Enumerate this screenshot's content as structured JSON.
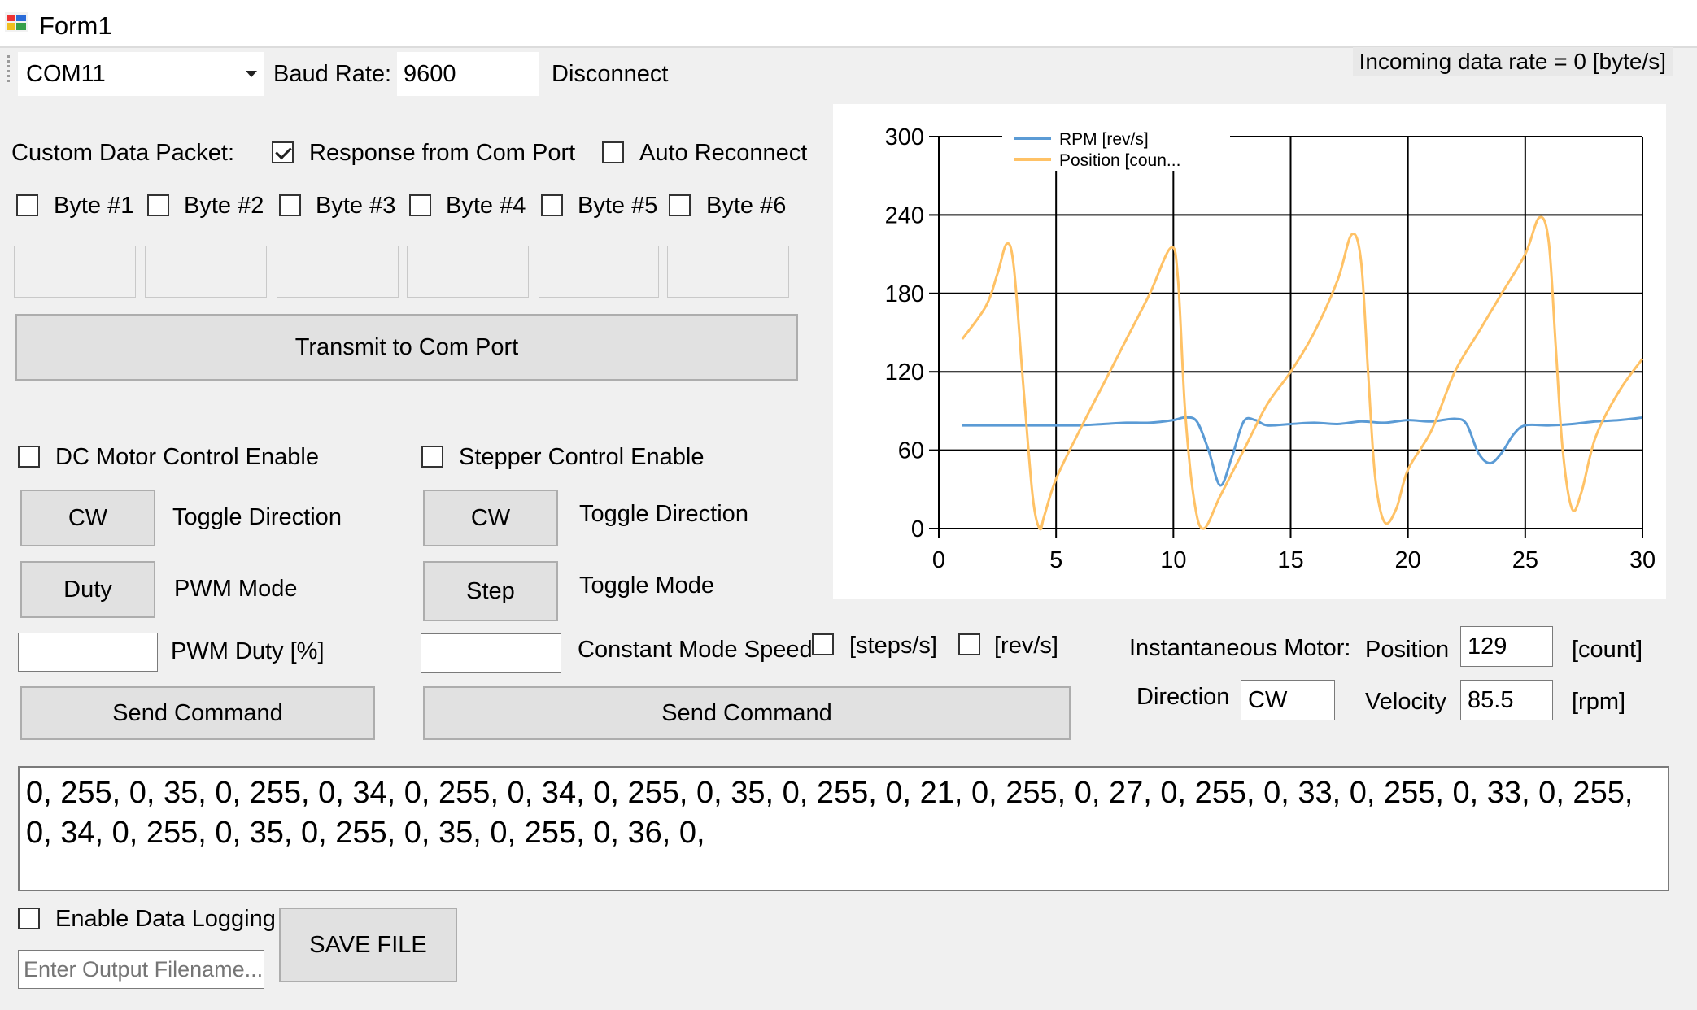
{
  "window": {
    "title": "Form1"
  },
  "toolbar": {
    "port_value": "COM11",
    "baud_label": "Baud Rate:",
    "baud_value": "9600",
    "disconnect_label": "Disconnect",
    "incoming_rate_label": "Incoming data rate = 0 [byte/s]"
  },
  "packet": {
    "custom_label": "Custom Data Packet:",
    "response_label": "Response from Com Port",
    "response_checked": true,
    "auto_reconnect_label": "Auto Reconnect",
    "bytes": [
      "Byte #1",
      "Byte #2",
      "Byte #3",
      "Byte #4",
      "Byte #5",
      "Byte #6"
    ],
    "transmit_label": "Transmit to Com Port"
  },
  "dc": {
    "enable_label": "DC Motor Control Enable",
    "cw_label": "CW",
    "toggle_dir_label": "Toggle Direction",
    "duty_label": "Duty",
    "pwm_mode_label": "PWM Mode",
    "pwm_duty_label": "PWM Duty [%]",
    "send_label": "Send Command"
  },
  "stepper": {
    "enable_label": "Stepper Control Enable",
    "cw_label": "CW",
    "toggle_dir_label": "Toggle Direction",
    "step_label": "Step",
    "toggle_mode_label": "Toggle Mode",
    "const_speed_label": "Constant Mode Speed",
    "steps_label": "[steps/s]",
    "revs_label": "[rev/s]",
    "send_label": "Send Command"
  },
  "motor": {
    "instant_label": "Instantaneous Motor:",
    "position_label": "Position",
    "position_value": "129",
    "count_unit": "[count]",
    "direction_label": "Direction",
    "direction_value": "CW",
    "velocity_label": "Velocity",
    "velocity_value": "85.5",
    "rpm_unit": "[rpm]"
  },
  "output": {
    "text": "0, 255, 0, 35, 0, 255, 0, 34, 0, 255, 0, 34, 0, 255, 0, 35, 0, 255, 0, 21, 0, 255, 0, 27, 0, 255, 0, 33, 0, 255, 0, 33, 0, 255, 0, 34, 0, 255, 0, 35, 0, 255, 0, 35, 0, 255, 0, 36, 0,"
  },
  "logging": {
    "enable_label": "Enable Data Logging",
    "filename_placeholder": "Enter Output Filename...",
    "save_label": "SAVE FILE"
  },
  "colors": {
    "rpm": "#5b9bd5",
    "position": "#ffc266",
    "window_bg": "#f0f0f0"
  },
  "chart_data": {
    "type": "line",
    "xlim": [
      0,
      30
    ],
    "ylim": [
      0,
      300
    ],
    "x_ticks": [
      0,
      5,
      10,
      15,
      20,
      25,
      30
    ],
    "y_ticks": [
      0,
      60,
      120,
      180,
      240,
      300
    ],
    "grid": true,
    "legend_position": "top",
    "series": [
      {
        "name": "RPM [rev/s]",
        "color": "#5b9bd5",
        "x": [
          1,
          2,
          3,
          4,
          5,
          6,
          7,
          8,
          9,
          10,
          10.5,
          11,
          11.5,
          12,
          12.5,
          13,
          13.5,
          14,
          15,
          16,
          17,
          18,
          19,
          20,
          21,
          22,
          22.5,
          23,
          23.5,
          24,
          24.5,
          25,
          26,
          27,
          28,
          29,
          30
        ],
        "values": [
          79,
          79,
          79,
          79,
          79,
          79,
          80,
          81,
          81,
          83,
          85,
          82,
          60,
          33,
          55,
          82,
          83,
          79,
          80,
          81,
          80,
          82,
          81,
          83,
          82,
          84,
          80,
          58,
          50,
          58,
          72,
          79,
          79,
          80,
          82,
          83,
          85
        ]
      },
      {
        "name": "Position [coun...",
        "color": "#ffc266",
        "x": [
          1,
          2,
          2.5,
          2.9,
          3.2,
          3.6,
          4,
          4.3,
          4.5,
          5,
          6,
          7,
          8,
          9,
          9.9,
          10.2,
          10.5,
          10.9,
          11.3,
          12,
          13,
          14,
          15,
          16,
          17,
          17.6,
          18,
          18.3,
          18.6,
          19,
          19.5,
          20,
          21,
          22,
          23,
          24,
          25,
          25.6,
          26,
          26.3,
          26.6,
          27,
          27.4,
          28,
          29,
          30
        ],
        "values": [
          145,
          170,
          195,
          218,
          200,
          110,
          25,
          0,
          10,
          38,
          75,
          110,
          145,
          180,
          215,
          190,
          90,
          20,
          0,
          25,
          60,
          95,
          120,
          150,
          190,
          225,
          205,
          120,
          40,
          5,
          15,
          45,
          75,
          120,
          150,
          180,
          210,
          238,
          220,
          140,
          60,
          15,
          28,
          70,
          105,
          130
        ]
      }
    ]
  }
}
